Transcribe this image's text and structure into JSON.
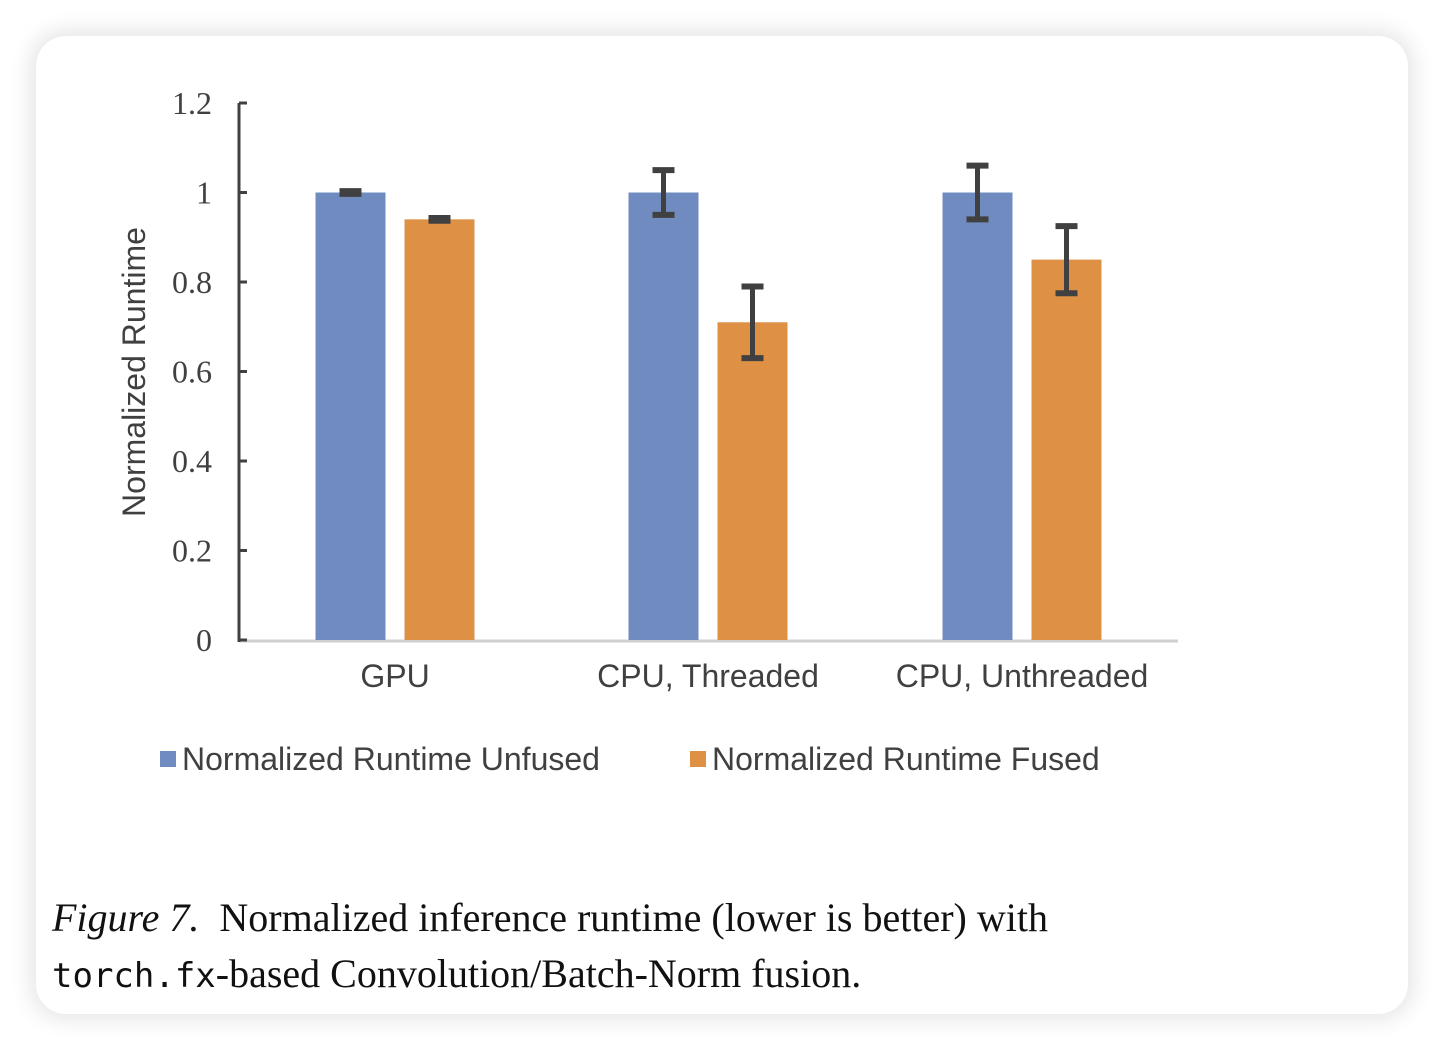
{
  "chart_data": {
    "type": "bar",
    "title": "",
    "xlabel": "",
    "ylabel": "Normalized Runtime",
    "ylim": [
      0,
      1.2
    ],
    "yticks": [
      "0",
      "0.2",
      "0.4",
      "0.6",
      "0.8",
      "1",
      "1.2"
    ],
    "ytick_values": [
      0,
      0.2,
      0.4,
      0.6,
      0.8,
      1,
      1.2
    ],
    "categories": [
      "GPU",
      "CPU, Threaded",
      "CPU, Unthreaded"
    ],
    "series": [
      {
        "name": "Normalized Runtime Unfused",
        "color": "#6F8BC0",
        "values": [
          1.0,
          1.0,
          1.0
        ],
        "errors": [
          0.003,
          0.05,
          0.06
        ]
      },
      {
        "name": "Normalized Runtime Fused",
        "color": "#DE9045",
        "values": [
          0.94,
          0.71,
          0.85
        ],
        "errors": [
          0.003,
          0.08,
          0.075
        ]
      }
    ],
    "legend_position": "bottom",
    "grid": false
  },
  "caption": {
    "figure_label": "Figure 7.",
    "line1_text": "Normalized inference runtime (lower is better) with",
    "code": "torch.fx",
    "line2_text": "-based Convolution/Batch-Norm fusion."
  }
}
